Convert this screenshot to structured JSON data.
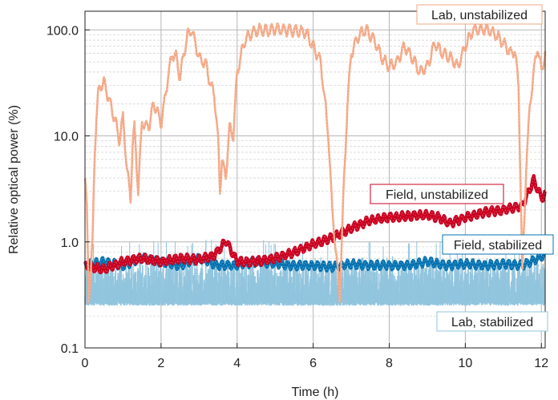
{
  "chart_data": {
    "type": "line",
    "xlabel": "Time (h)",
    "ylabel": "Relative optical power (%)",
    "xlim": [
      0,
      12.1
    ],
    "ylim": [
      0.1,
      150
    ],
    "yscale": "log",
    "xticks": [
      0,
      2,
      4,
      6,
      8,
      10,
      12
    ],
    "xtick_labels": [
      "0",
      "2",
      "4",
      "6",
      "8",
      "10",
      "12"
    ],
    "yticks": [
      0.1,
      1,
      10,
      100
    ],
    "ytick_labels": [
      "0.1",
      "1.0",
      "10.0",
      "100.0"
    ],
    "grid": true,
    "series": [
      {
        "name": "Lab, unstabilized",
        "color": "#f4a582",
        "x": [
          0,
          0.05,
          0.1,
          0.15,
          0.2,
          0.25,
          0.3,
          0.35,
          0.4,
          0.5,
          0.6,
          0.7,
          0.8,
          0.9,
          1.0,
          1.1,
          1.2,
          1.25,
          1.3,
          1.4,
          1.5,
          1.6,
          1.7,
          1.8,
          1.9,
          2.0,
          2.1,
          2.2,
          2.3,
          2.4,
          2.5,
          2.6,
          2.7,
          2.8,
          2.9,
          3.0,
          3.1,
          3.2,
          3.3,
          3.4,
          3.5,
          3.55,
          3.6,
          3.7,
          3.8,
          3.9,
          4.0,
          4.2,
          4.4,
          4.6,
          4.8,
          5.0,
          5.2,
          5.4,
          5.6,
          5.8,
          6.0,
          6.2,
          6.4,
          6.5,
          6.6,
          6.7,
          6.8,
          6.9,
          7.0,
          7.2,
          7.4,
          7.6,
          7.8,
          8.0,
          8.2,
          8.4,
          8.6,
          8.8,
          9.0,
          9.2,
          9.4,
          9.6,
          9.8,
          10.0,
          10.2,
          10.4,
          10.6,
          10.8,
          11.0,
          11.2,
          11.3,
          11.4,
          11.5,
          11.6,
          11.7,
          11.8,
          11.9,
          12.0,
          12.1
        ],
        "values": [
          4.0,
          2.0,
          0.3,
          0.5,
          1.0,
          6.0,
          15,
          25,
          30,
          32,
          24,
          18,
          14,
          9,
          15,
          5,
          2.5,
          8,
          12,
          3,
          14,
          12,
          13,
          20,
          17,
          13,
          22,
          40,
          60,
          55,
          35,
          60,
          90,
          100,
          75,
          55,
          50,
          45,
          30,
          25,
          9,
          3,
          6,
          4,
          12,
          10,
          40,
          80,
          95,
          100,
          98,
          102,
          100,
          99,
          98,
          95,
          70,
          50,
          10,
          2,
          0.8,
          0.3,
          3,
          20,
          60,
          90,
          100,
          80,
          55,
          45,
          50,
          70,
          55,
          40,
          45,
          75,
          60,
          55,
          45,
          70,
          100,
          102,
          100,
          90,
          75,
          60,
          65,
          30,
          0.5,
          5,
          20,
          40,
          70,
          40,
          60
        ]
      },
      {
        "name": "Field, unstabilized",
        "color": "#ca0020",
        "x": [
          0,
          0.5,
          1.0,
          1.5,
          2.0,
          2.5,
          3.0,
          3.4,
          3.6,
          3.7,
          4.0,
          4.5,
          5.0,
          5.5,
          6.0,
          6.5,
          7.0,
          7.5,
          8.0,
          8.5,
          9.0,
          9.3,
          9.6,
          10.0,
          10.5,
          11.0,
          11.5,
          11.8,
          12.0,
          12.1
        ],
        "values": [
          0.6,
          0.55,
          0.65,
          0.7,
          0.65,
          0.7,
          0.68,
          0.75,
          0.9,
          1.05,
          0.65,
          0.65,
          0.7,
          0.8,
          0.95,
          1.1,
          1.35,
          1.6,
          1.7,
          1.75,
          1.8,
          1.7,
          1.5,
          1.7,
          1.9,
          2.0,
          2.2,
          3.8,
          2.6,
          2.8
        ]
      },
      {
        "name": "Field, stabilized",
        "color": "#0571b0",
        "x": [
          0,
          0.5,
          1.0,
          1.5,
          2.0,
          2.5,
          3.0,
          3.5,
          4.0,
          4.5,
          5.0,
          5.5,
          6.0,
          6.5,
          7.0,
          7.5,
          8.0,
          8.5,
          9.0,
          9.5,
          10.0,
          10.5,
          11.0,
          11.5,
          12.0,
          12.1
        ],
        "values": [
          0.6,
          0.65,
          0.6,
          0.7,
          0.65,
          0.6,
          0.7,
          0.6,
          0.6,
          0.65,
          0.62,
          0.6,
          0.6,
          0.58,
          0.62,
          0.6,
          0.6,
          0.6,
          0.65,
          0.6,
          0.62,
          0.6,
          0.62,
          0.6,
          0.72,
          0.72
        ]
      },
      {
        "name": "Lab, stabilized",
        "color": "#92c5de",
        "x": [
          0,
          1,
          2,
          3,
          4,
          5,
          6,
          7,
          8,
          9,
          10,
          11,
          12,
          12.1
        ],
        "values": [
          0.3,
          0.3,
          0.3,
          0.3,
          0.3,
          0.3,
          0.3,
          0.3,
          0.3,
          0.3,
          0.3,
          0.3,
          0.3,
          0.3
        ],
        "band_low": 0.25,
        "band_high": 0.55
      }
    ]
  }
}
